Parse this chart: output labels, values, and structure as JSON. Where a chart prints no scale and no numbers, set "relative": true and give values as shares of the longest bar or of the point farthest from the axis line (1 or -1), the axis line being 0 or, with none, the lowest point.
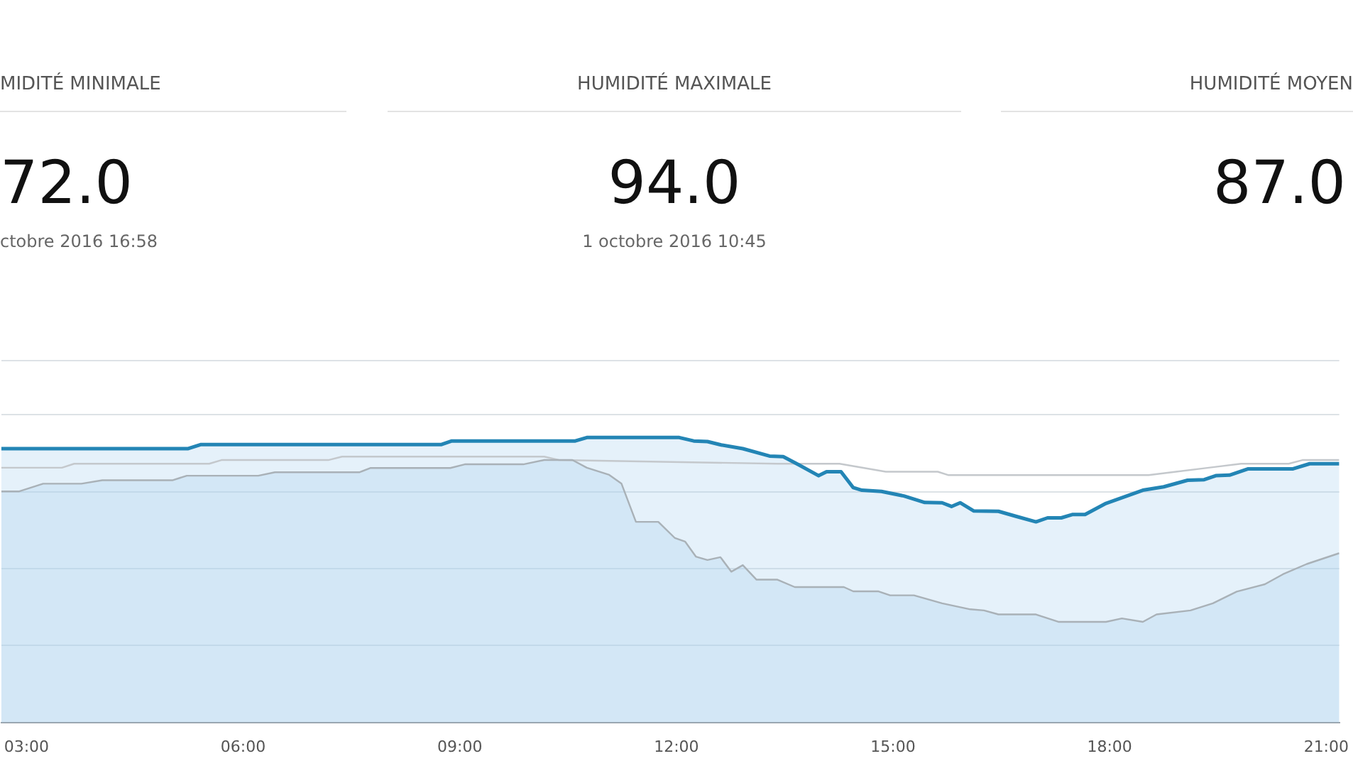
{
  "chart_data": {
    "type": "area",
    "relative": true,
    "grid": "y",
    "xlim": [
      2.65,
      21.18
    ],
    "xticks": [
      {
        "value": 3,
        "label": "03:00"
      },
      {
        "value": 6,
        "label": "06:00"
      },
      {
        "value": 9,
        "label": "09:00"
      },
      {
        "value": 12,
        "label": "12:00"
      },
      {
        "value": 15,
        "label": "15:00"
      },
      {
        "value": 18,
        "label": "18:00"
      },
      {
        "value": 21,
        "label": "21:00"
      }
    ],
    "annotations": [
      "MIDITÉ MINIMALE",
      "72.0",
      "ctobre 2016 16:58",
      "HUMIDITÉ MAXIMALE",
      "94.0",
      "1 octobre 2016 10:45",
      "HUMIDITÉ MOYEN",
      "87.0"
    ],
    "series": [
      {
        "type": "line",
        "color": "#c4c8cc",
        "x": [
          2.65,
          3.49,
          3.66,
          5.53,
          5.7,
          7.18,
          7.37,
          10.17,
          10.37,
          13.4,
          14.26,
          14.9,
          15.62,
          15.77,
          18.54,
          18.92,
          19.37,
          19.82,
          20.48,
          20.67,
          21.18
        ],
        "values": [
          0.894,
          0.894,
          0.908,
          0.908,
          0.921,
          0.921,
          0.933,
          0.933,
          0.921,
          0.908,
          0.908,
          0.88,
          0.88,
          0.868,
          0.868,
          0.88,
          0.894,
          0.908,
          0.908,
          0.921,
          0.921
        ]
      },
      {
        "color": "#2385b5",
        "x": [
          2.65,
          5.24,
          5.41,
          8.74,
          8.89,
          10.6,
          10.76,
          12.04,
          12.24,
          12.43,
          12.62,
          12.92,
          13.29,
          13.48,
          13.69,
          13.97,
          14.08,
          14.28,
          14.45,
          14.57,
          14.84,
          15.15,
          15.44,
          15.68,
          15.81,
          15.93,
          16.12,
          16.46,
          16.71,
          16.98,
          17.14,
          17.33,
          17.49,
          17.66,
          17.95,
          18.26,
          18.46,
          18.75,
          19.08,
          19.31,
          19.47,
          19.66,
          19.92,
          20.54,
          20.77,
          21.18
        ],
        "values": [
          0.961,
          0.961,
          0.975,
          0.975,
          0.988,
          0.988,
          1.0,
          1.0,
          0.988,
          0.986,
          0.974,
          0.961,
          0.935,
          0.933,
          0.905,
          0.866,
          0.88,
          0.88,
          0.824,
          0.815,
          0.811,
          0.795,
          0.772,
          0.771,
          0.758,
          0.771,
          0.742,
          0.741,
          0.723,
          0.704,
          0.718,
          0.718,
          0.73,
          0.73,
          0.769,
          0.797,
          0.815,
          0.827,
          0.85,
          0.852,
          0.866,
          0.868,
          0.89,
          0.89,
          0.908,
          0.908
        ]
      },
      {
        "color": "#a9b1b7",
        "x": [
          2.65,
          2.9,
          3.23,
          3.76,
          4.05,
          5.02,
          5.22,
          6.21,
          6.44,
          7.61,
          7.76,
          8.87,
          9.07,
          9.88,
          10.17,
          10.56,
          10.76,
          11.07,
          11.24,
          11.44,
          11.75,
          11.98,
          12.12,
          12.27,
          12.43,
          12.61,
          12.76,
          12.92,
          13.11,
          13.4,
          13.64,
          14.32,
          14.45,
          14.8,
          14.96,
          15.29,
          15.68,
          16.07,
          16.26,
          16.46,
          16.98,
          17.29,
          17.95,
          18.17,
          18.46,
          18.65,
          19.12,
          19.43,
          19.76,
          20.15,
          20.4,
          20.73,
          21.18
        ],
        "values": [
          0.811,
          0.811,
          0.838,
          0.838,
          0.85,
          0.85,
          0.866,
          0.866,
          0.878,
          0.878,
          0.893,
          0.893,
          0.906,
          0.906,
          0.921,
          0.921,
          0.894,
          0.869,
          0.838,
          0.704,
          0.704,
          0.647,
          0.635,
          0.582,
          0.57,
          0.58,
          0.529,
          0.552,
          0.501,
          0.501,
          0.475,
          0.475,
          0.46,
          0.46,
          0.446,
          0.446,
          0.418,
          0.397,
          0.393,
          0.379,
          0.379,
          0.353,
          0.353,
          0.365,
          0.353,
          0.379,
          0.393,
          0.418,
          0.459,
          0.485,
          0.52,
          0.556,
          0.594
        ]
      }
    ]
  }
}
